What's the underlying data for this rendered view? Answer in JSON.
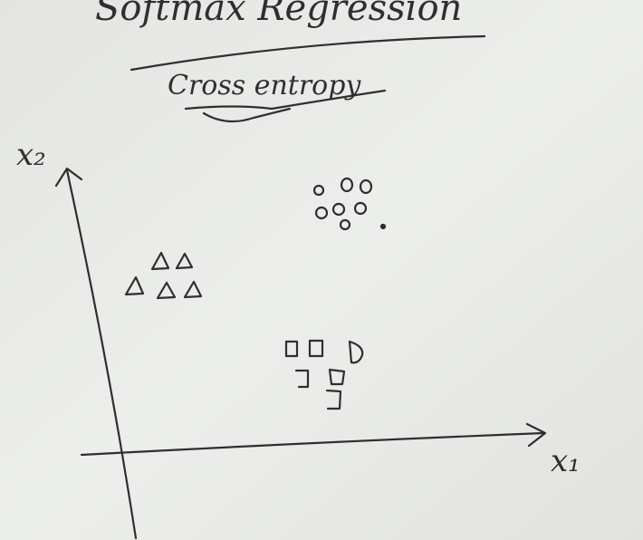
{
  "header": {
    "title": "Softmax Regression",
    "subtitle": "Cross entropy"
  },
  "axes": {
    "x_label": "x₁",
    "y_label": "x₂"
  }
}
